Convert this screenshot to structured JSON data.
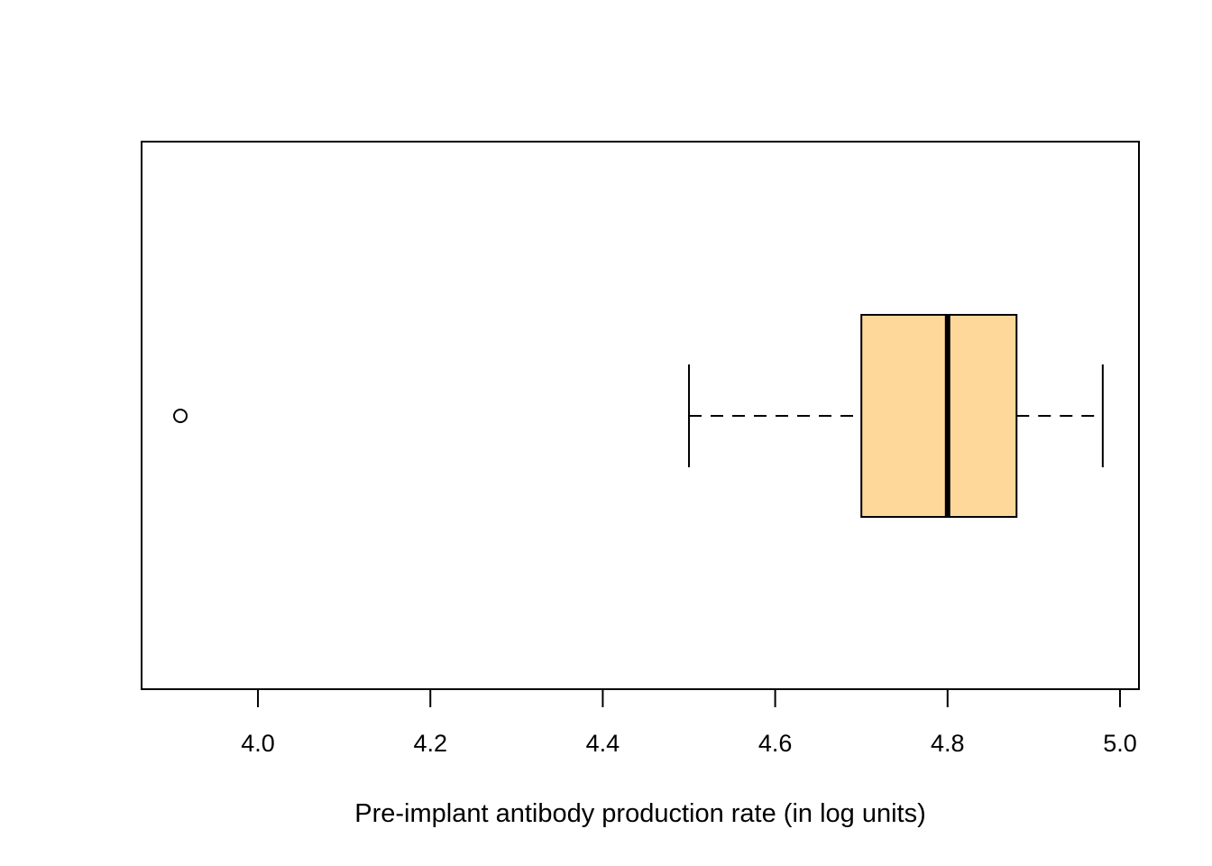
{
  "chart_data": {
    "type": "boxplot",
    "orientation": "horizontal",
    "title": "",
    "xlabel": "Pre-implant antibody production rate (in log units)",
    "ylabel": "",
    "xlim": [
      3.865,
      5.022
    ],
    "x_ticks": [
      4.0,
      4.2,
      4.4,
      4.6,
      4.8,
      5.0
    ],
    "x_tick_labels": [
      "4.0",
      "4.2",
      "4.4",
      "4.6",
      "4.8",
      "5.0"
    ],
    "grid": false,
    "legend": "none",
    "box": {
      "whisker_low": 4.5,
      "q1": 4.7,
      "median": 4.8,
      "q3": 4.88,
      "whisker_high": 4.98,
      "outliers": [
        3.91
      ]
    },
    "colors": {
      "box_fill": "#FED89B",
      "stroke": "#000000",
      "background": "#FFFFFF"
    }
  }
}
